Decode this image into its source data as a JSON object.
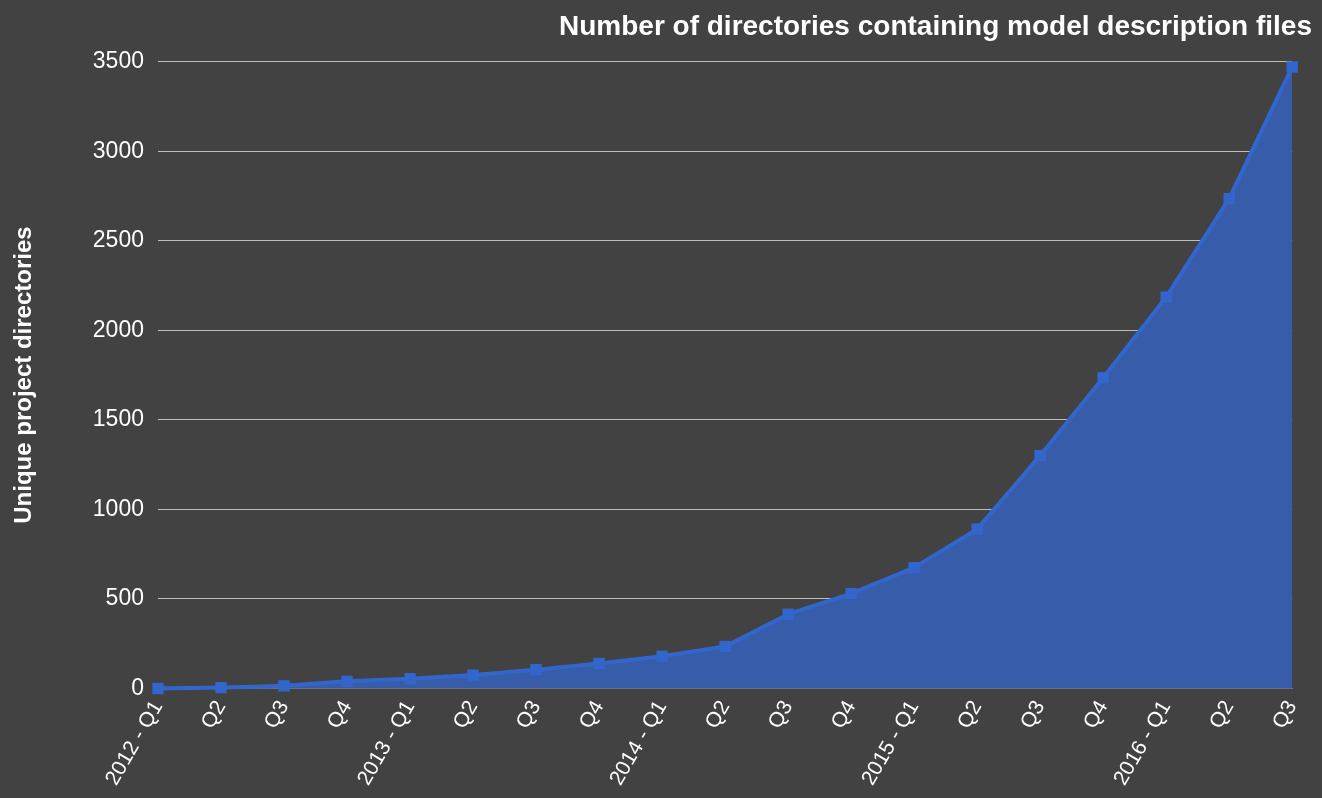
{
  "chart_data": {
    "type": "area",
    "title": "Number of directories containing model description files",
    "ylabel": "Unique project directories",
    "categories": [
      "2012 - Q1",
      "Q2",
      "Q3",
      "Q4",
      "2013 - Q1",
      "Q2",
      "Q3",
      "Q4",
      "2014 - Q1",
      "Q2",
      "Q3",
      "Q4",
      "2015 - Q1",
      "Q2",
      "Q3",
      "Q4",
      "2016 - Q1",
      "Q2",
      "Q3"
    ],
    "series": [
      {
        "color": "#3366cc",
        "values": [
          0,
          5,
          15,
          40,
          55,
          75,
          105,
          140,
          180,
          235,
          415,
          530,
          675,
          890,
          1300,
          1735,
          2185,
          2735,
          3470
        ]
      }
    ],
    "ylim": [
      0,
      3500
    ],
    "yticks": [
      0,
      500,
      1000,
      1500,
      2000,
      2500,
      3000,
      3500
    ],
    "grid": "y",
    "marker": "square",
    "line_style": "solid",
    "legend": false
  }
}
